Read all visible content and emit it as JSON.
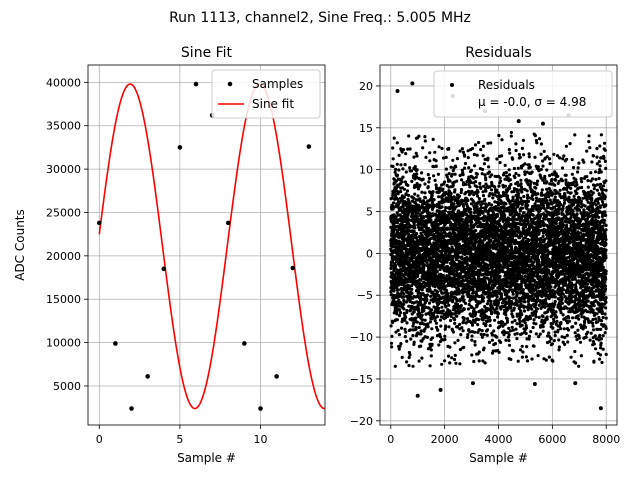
{
  "figure": {
    "suptitle": "Run 1113, channel2, Sine Freq.: 5.005 MHz"
  },
  "chart_data": [
    {
      "type": "line",
      "title": "Sine Fit",
      "xlabel": "Sample #",
      "ylabel": "ADC Counts",
      "xlim": [
        -0.7,
        14.0
      ],
      "ylim": [
        500,
        42000
      ],
      "xticks": [
        0,
        5,
        10
      ],
      "yticks": [
        5000,
        10000,
        15000,
        20000,
        25000,
        30000,
        35000,
        40000
      ],
      "grid": true,
      "legend": {
        "placement": "upper-right",
        "entries": [
          "Samples",
          "Sine fit"
        ]
      },
      "series": [
        {
          "name": "Samples",
          "kind": "scatter",
          "color": "#000000",
          "x": [
            0,
            1,
            2,
            3,
            4,
            5,
            6,
            7,
            8,
            9,
            10,
            11,
            12,
            13
          ],
          "y": [
            23800,
            9900,
            2400,
            6100,
            18500,
            32500,
            39800,
            36200,
            23800,
            9900,
            2400,
            6100,
            18600,
            32600
          ]
        },
        {
          "name": "Sine fit",
          "kind": "line",
          "color": "#ff0000",
          "model": {
            "offset": 21100,
            "amplitude": 18700,
            "period": 8.03,
            "phase": 0.0736,
            "x_range": [
              0,
              14
            ]
          }
        }
      ]
    },
    {
      "type": "scatter",
      "title": "Residuals",
      "xlabel": "Sample #",
      "ylabel": "",
      "xlim": [
        -400,
        8400
      ],
      "ylim": [
        -20.5,
        22.5
      ],
      "xticks": [
        0,
        2000,
        4000,
        6000,
        8000
      ],
      "yticks": [
        -20,
        -15,
        -10,
        -5,
        0,
        5,
        10,
        15,
        20
      ],
      "grid": true,
      "legend": {
        "placement": "upper-right",
        "entries": [
          "Residuals"
        ],
        "stats": "μ = -0.0, σ = 4.98"
      },
      "series": [
        {
          "name": "Residuals",
          "color": "#000000",
          "n_points": 8000,
          "mean": 0.0,
          "std": 4.98,
          "x_range": [
            0,
            8000
          ],
          "notable_points": [
            {
              "x": 800,
              "y": 20.3
            },
            {
              "x": 250,
              "y": 19.4
            },
            {
              "x": 2300,
              "y": 18.8
            },
            {
              "x": 7800,
              "y": -18.5
            },
            {
              "x": 1000,
              "y": -17.0
            },
            {
              "x": 6600,
              "y": 16.5
            },
            {
              "x": 3500,
              "y": 17.0
            },
            {
              "x": 1850,
              "y": -16.3
            },
            {
              "x": 3050,
              "y": -15.5
            },
            {
              "x": 5350,
              "y": -15.6
            },
            {
              "x": 5650,
              "y": 15.5
            },
            {
              "x": 4750,
              "y": 15.8
            },
            {
              "x": 6850,
              "y": -15.5
            }
          ]
        }
      ]
    }
  ]
}
